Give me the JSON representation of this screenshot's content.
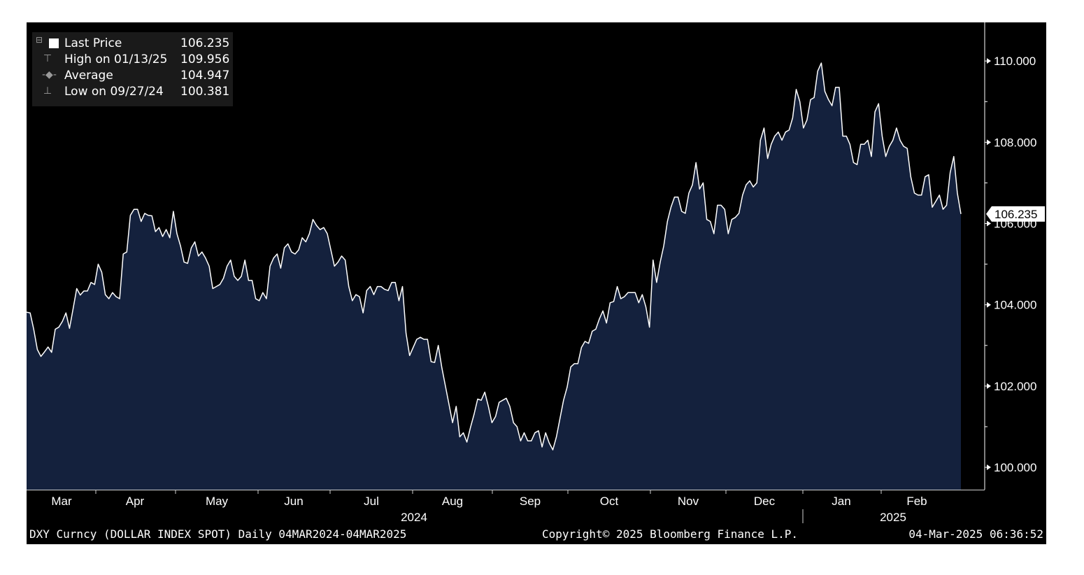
{
  "legend": {
    "items": [
      {
        "label": "Last Price",
        "value": "106.235"
      },
      {
        "label": "High on 01/13/25",
        "value": "109.956"
      },
      {
        "label": "Average",
        "value": "104.947"
      },
      {
        "label": "Low on 09/27/24",
        "value": "100.381"
      }
    ]
  },
  "footer": {
    "left": "DXY Curncy (DOLLAR INDEX SPOT)  Daily 04MAR2024-04MAR2025",
    "center": "Copyright© 2025 Bloomberg Finance L.P.",
    "right": "04-Mar-2025 06:36:52"
  },
  "colors": {
    "background": "#000000",
    "area_fill": "#14213d",
    "line": "#ffffff",
    "axis": "#ffffff",
    "legend_bg": "#1a1a1a"
  },
  "icons": {
    "legend": [
      "collapse-box-icon",
      "high-marker-icon",
      "average-marker-icon",
      "low-marker-icon"
    ]
  },
  "chart_data": {
    "type": "area",
    "title": "",
    "xlabel": "",
    "ylabel": "",
    "ylim": [
      99.45,
      110.95
    ],
    "yticks": [
      100,
      102,
      104,
      106,
      108,
      110
    ],
    "ytick_labels": [
      "100.000",
      "102.000",
      "104.000",
      "106.000",
      "108.000",
      "110.000"
    ],
    "last_value_label": "106.235",
    "grid": false,
    "legend_position": "top-left",
    "month_labels": [
      "Mar",
      "Apr",
      "May",
      "Jun",
      "Jul",
      "Aug",
      "Sep",
      "Oct",
      "Nov",
      "Dec",
      "Jan",
      "Feb"
    ],
    "year_labels": [
      "2024",
      "2025"
    ],
    "series": [
      {
        "values": [
          103.82,
          103.8,
          103.4,
          102.9,
          102.73,
          102.84,
          102.96,
          102.83,
          103.4,
          103.45,
          103.59,
          103.8,
          103.42,
          103.9,
          104.4,
          104.24,
          104.34,
          104.34,
          104.55,
          104.5,
          105.0,
          104.8,
          104.25,
          104.15,
          104.3,
          104.2,
          104.15,
          105.25,
          105.3,
          106.2,
          106.35,
          106.35,
          106.05,
          106.25,
          106.2,
          106.19,
          105.8,
          105.9,
          105.68,
          105.85,
          105.65,
          106.3,
          105.75,
          105.45,
          105.05,
          105.02,
          105.4,
          105.55,
          105.2,
          105.3,
          105.15,
          104.95,
          104.4,
          104.45,
          104.5,
          104.65,
          104.95,
          105.1,
          104.7,
          104.6,
          104.7,
          105.1,
          104.6,
          104.6,
          104.15,
          104.1,
          104.3,
          104.15,
          104.95,
          105.15,
          105.25,
          104.9,
          105.4,
          105.5,
          105.3,
          105.25,
          105.35,
          105.65,
          105.55,
          105.75,
          106.1,
          105.95,
          105.85,
          105.9,
          105.75,
          105.35,
          104.95,
          105.05,
          105.2,
          105.1,
          104.45,
          104.1,
          104.25,
          104.2,
          103.8,
          104.35,
          104.45,
          104.25,
          104.45,
          104.45,
          104.38,
          104.35,
          104.55,
          104.55,
          104.1,
          104.45,
          103.3,
          102.75,
          102.95,
          103.15,
          103.2,
          103.15,
          103.15,
          102.6,
          102.58,
          103.0,
          102.45,
          102.0,
          101.55,
          101.1,
          101.5,
          100.75,
          100.85,
          100.62,
          100.98,
          101.3,
          101.68,
          101.65,
          101.85,
          101.5,
          101.1,
          101.25,
          101.6,
          101.65,
          101.7,
          101.5,
          101.1,
          101.0,
          100.65,
          100.85,
          100.65,
          100.65,
          100.85,
          100.9,
          100.5,
          100.85,
          100.6,
          100.43,
          100.75,
          101.2,
          101.65,
          101.97,
          102.47,
          102.55,
          102.55,
          102.95,
          103.1,
          103.05,
          103.35,
          103.4,
          103.65,
          103.85,
          103.55,
          104.05,
          104.08,
          104.45,
          104.15,
          104.2,
          104.3,
          104.3,
          104.3,
          104.05,
          104.25,
          103.95,
          103.45,
          105.1,
          104.55,
          105.05,
          105.45,
          106.05,
          106.4,
          106.65,
          106.65,
          106.3,
          106.25,
          106.75,
          106.95,
          107.5,
          106.85,
          107.0,
          106.1,
          106.05,
          105.75,
          106.45,
          106.45,
          106.35,
          105.75,
          106.1,
          106.15,
          106.25,
          106.7,
          106.95,
          107.05,
          106.9,
          107.0,
          108.05,
          108.35,
          107.6,
          107.95,
          108.15,
          108.25,
          108.05,
          108.25,
          108.3,
          108.6,
          109.3,
          109.0,
          108.35,
          108.55,
          109.05,
          109.1,
          109.75,
          109.95,
          109.25,
          109.05,
          108.9,
          109.35,
          109.35,
          108.15,
          108.15,
          107.95,
          107.5,
          107.45,
          107.95,
          107.95,
          108.05,
          107.65,
          108.75,
          108.95,
          108.15,
          107.65,
          107.9,
          108.05,
          108.35,
          108.05,
          107.9,
          107.85,
          107.15,
          106.75,
          106.7,
          106.7,
          107.15,
          107.2,
          106.4,
          106.55,
          106.7,
          106.35,
          106.45,
          107.25,
          107.65,
          106.75,
          106.235
        ]
      }
    ]
  }
}
